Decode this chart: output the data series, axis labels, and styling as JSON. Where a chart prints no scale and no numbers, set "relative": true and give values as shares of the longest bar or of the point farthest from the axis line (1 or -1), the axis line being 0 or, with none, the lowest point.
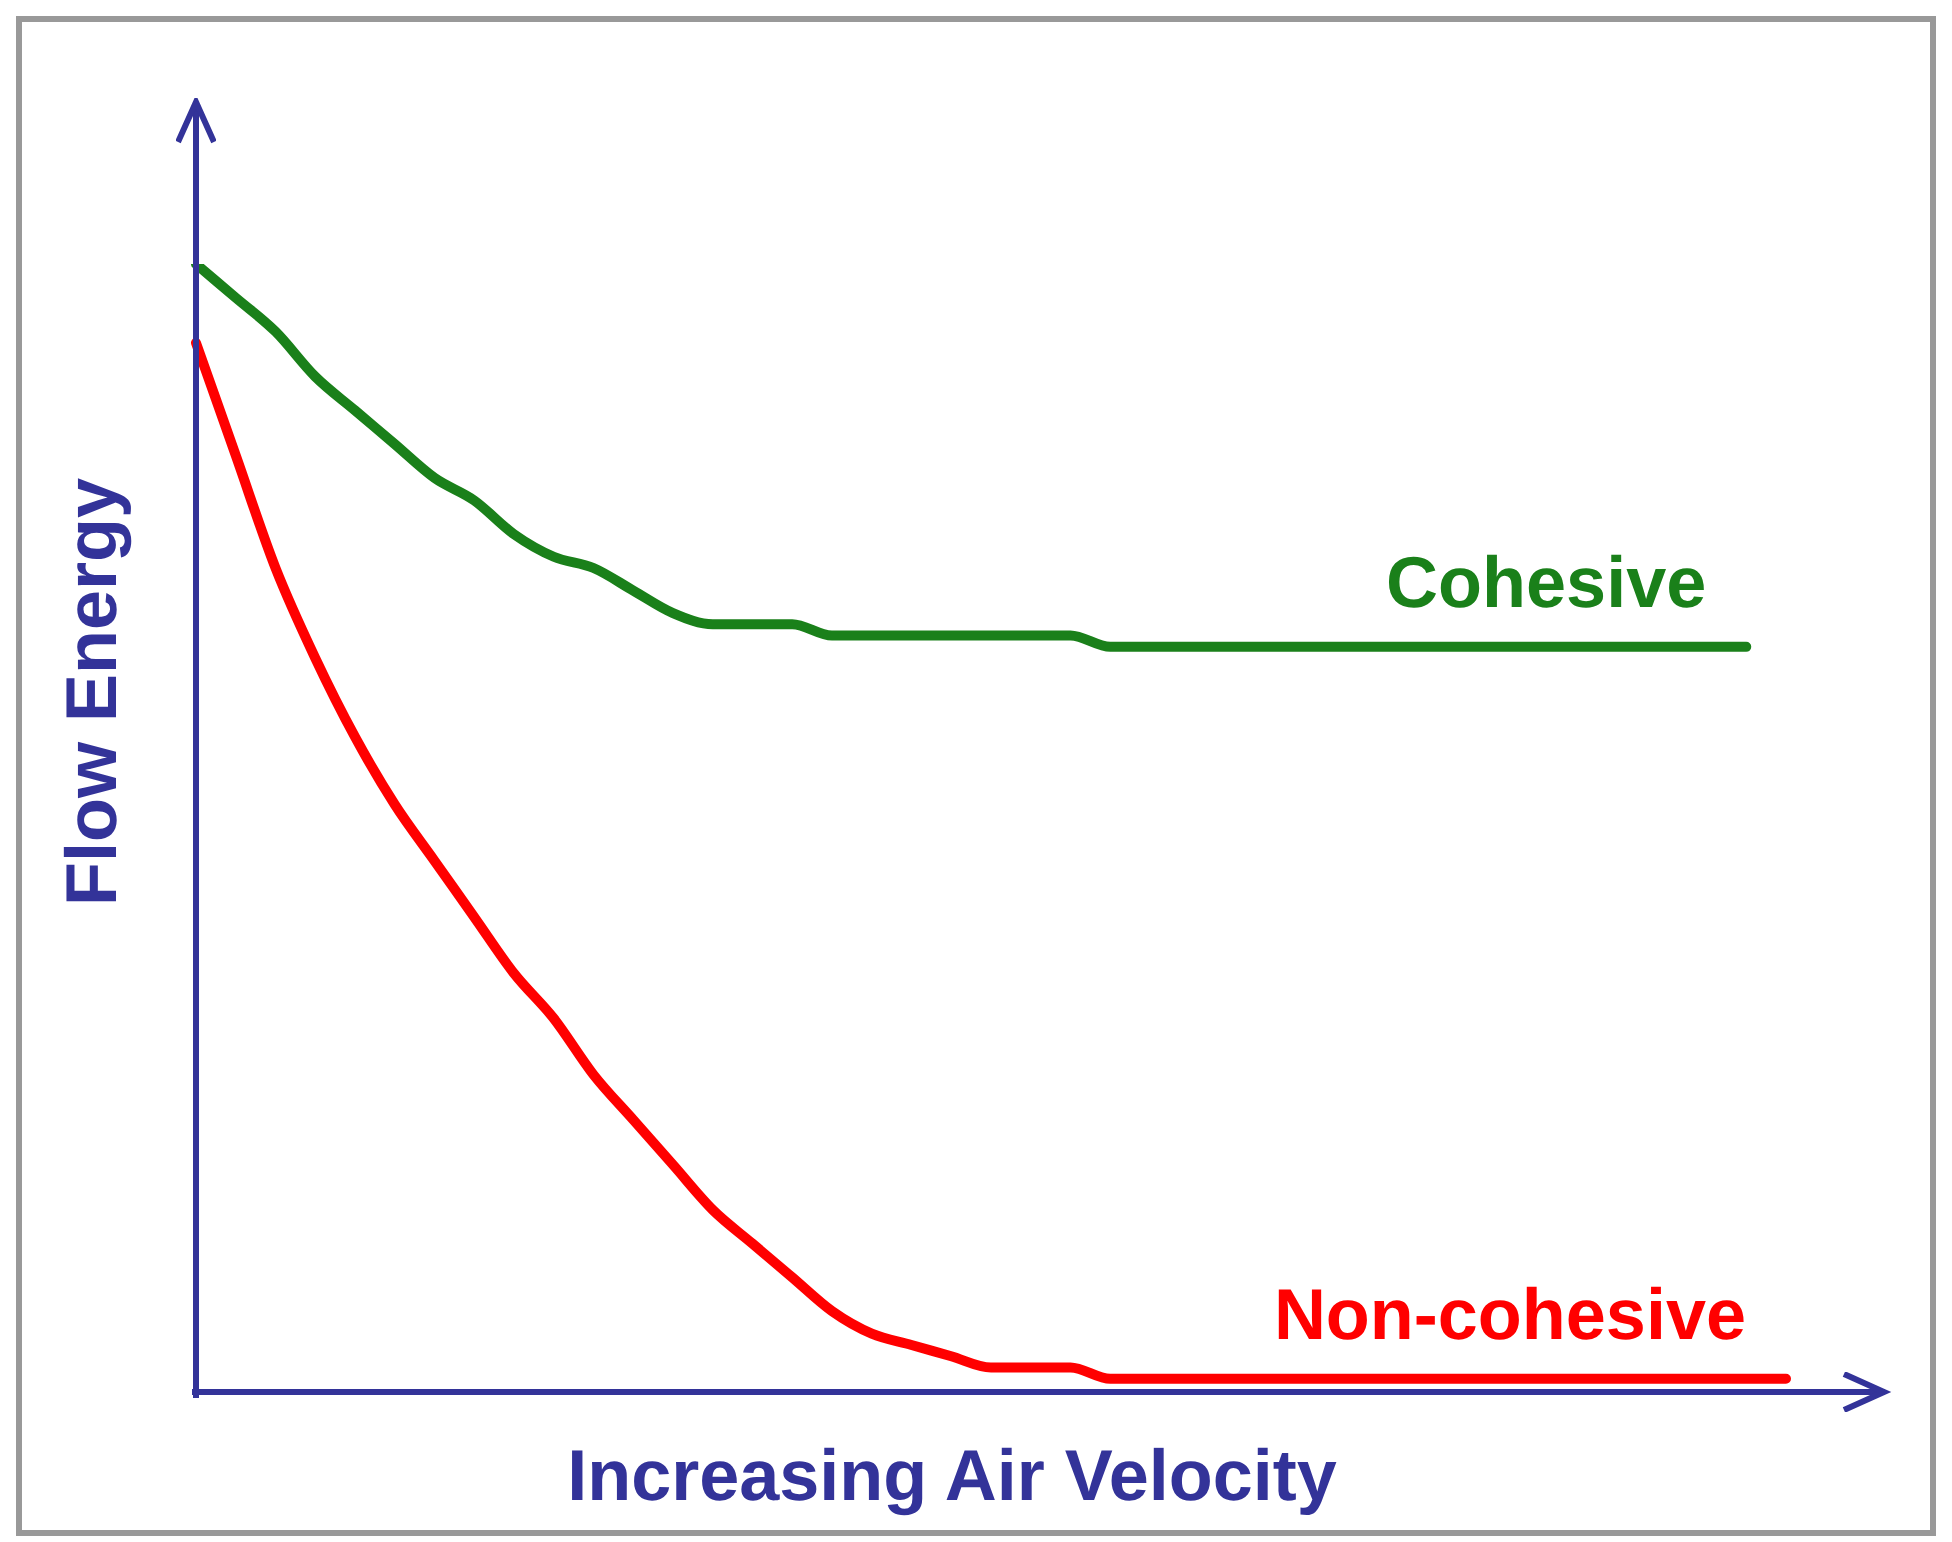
{
  "chart_data": {
    "type": "line",
    "relative": true,
    "xlabel": "Increasing Air Velocity",
    "ylabel": "Flow Energy",
    "categories": [
      null,
      null,
      null,
      null,
      null,
      null,
      null,
      null,
      null,
      null,
      null,
      null,
      null,
      null,
      null,
      null,
      null,
      null,
      null,
      null,
      null,
      null,
      null,
      null,
      null,
      null,
      null,
      null,
      null,
      null,
      null,
      null,
      null,
      null,
      null,
      null,
      null,
      null,
      null,
      null,
      null
    ],
    "series": [
      {
        "name": "Cohesive",
        "color": "#1a801a",
        "values": [
          1,
          0.97,
          0.94,
          0.9,
          0.87,
          0.84,
          0.81,
          0.79,
          0.76,
          0.74,
          0.73,
          0.71,
          0.69,
          0.68,
          0.68,
          0.68,
          0.67,
          0.67,
          0.67,
          0.67,
          0.67,
          0.67,
          0.67,
          0.66,
          0.66,
          0.66,
          0.66,
          0.66,
          0.66,
          0.66,
          0.66,
          0.66,
          0.66,
          0.66,
          0.66,
          0.66,
          0.66,
          0.66,
          0.66,
          0.66,
          null
        ]
      },
      {
        "name": "Non-cohesive",
        "color": "#ff0000",
        "values": [
          0.93,
          0.83,
          0.73,
          0.65,
          0.58,
          0.52,
          0.47,
          0.42,
          0.37,
          0.33,
          0.28,
          0.24,
          0.2,
          0.16,
          0.13,
          0.1,
          0.07,
          0.05,
          0.04,
          0.03,
          0.02,
          0.02,
          0.02,
          0.01,
          0.01,
          0.01,
          0.01,
          0.01,
          0.01,
          0.01,
          0.01,
          0.01,
          0.01,
          0.01,
          0.01,
          0.01,
          0.01,
          0.01,
          0.01,
          0.01,
          0.01
        ]
      }
    ]
  }
}
